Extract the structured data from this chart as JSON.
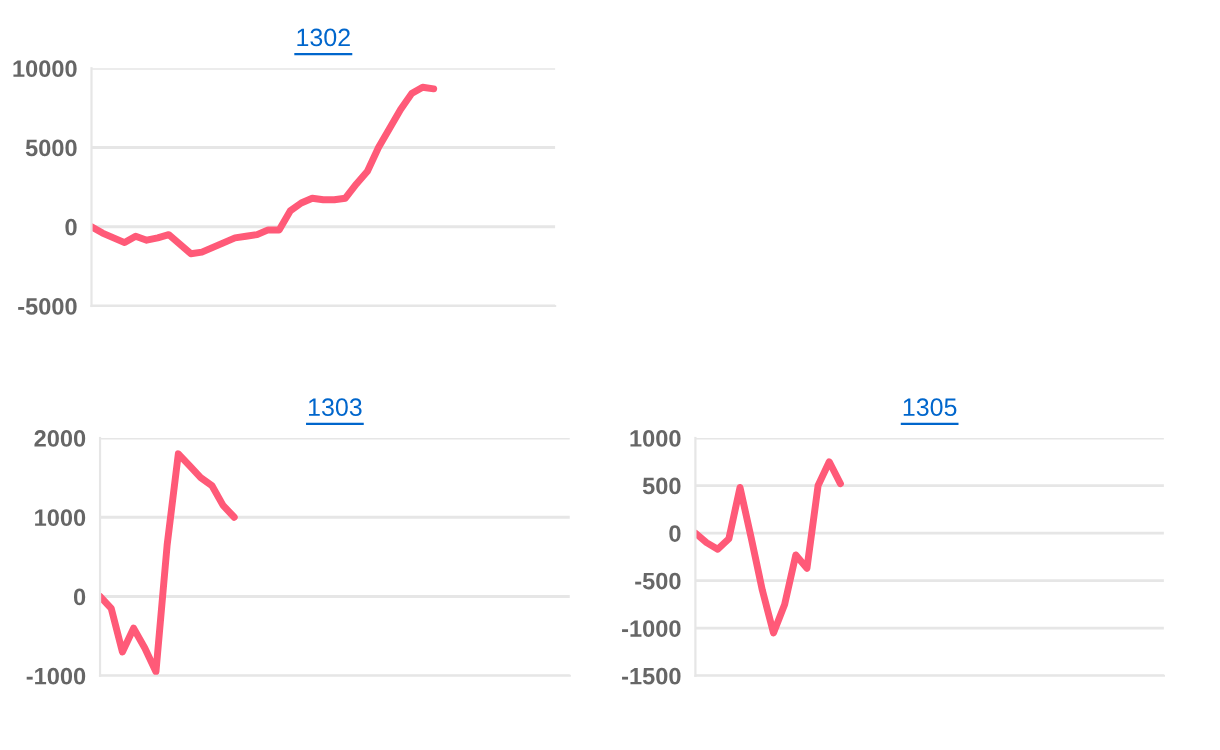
{
  "chart_data": [
    {
      "type": "line",
      "title": "1302",
      "categories": [
        null,
        null,
        null,
        null,
        null,
        null,
        null,
        null,
        null,
        null,
        null,
        null,
        null,
        null,
        null,
        null,
        null,
        null,
        null,
        null,
        null,
        null,
        null,
        null,
        null,
        null,
        null,
        null,
        null,
        null,
        null,
        null,
        null,
        null,
        null,
        null,
        null,
        null,
        null,
        null,
        null,
        null,
        null
      ],
      "series": [
        {
          "color": "#ff5a78",
          "values": [
            0,
            -400,
            -700,
            -1000,
            -600,
            -850,
            -700,
            -500,
            -1100,
            -1700,
            -1600,
            -1300,
            -1000,
            -700,
            -600,
            -500,
            -200,
            -200,
            1000,
            1500,
            1800,
            1700,
            1700,
            1800,
            2700,
            3500,
            5000,
            6200,
            7400,
            8400,
            8800,
            8700,
            null,
            null,
            null,
            null,
            null,
            null,
            null,
            null,
            null,
            null,
            null
          ]
        }
      ],
      "ylim": [
        -5000,
        10000
      ],
      "yticks": [
        -5000,
        0,
        5000,
        10000
      ],
      "grid": "y",
      "tick_labels": "y",
      "marker": "none",
      "line_style": "solid"
    },
    {
      "type": "line",
      "title": "1303",
      "categories": [
        null,
        null,
        null,
        null,
        null,
        null,
        null,
        null,
        null,
        null,
        null,
        null,
        null,
        null,
        null,
        null,
        null,
        null,
        null,
        null,
        null,
        null,
        null,
        null,
        null,
        null,
        null,
        null,
        null,
        null,
        null,
        null,
        null,
        null,
        null,
        null,
        null,
        null,
        null,
        null,
        null,
        null,
        null
      ],
      "series": [
        {
          "color": "#ff5a78",
          "values": [
            0,
            -150,
            -700,
            -400,
            -650,
            -950,
            650,
            1800,
            1650,
            1500,
            1400,
            1150,
            1000,
            null,
            null,
            null,
            null,
            null,
            null,
            null,
            null,
            null,
            null,
            null,
            null,
            null,
            null,
            null,
            null,
            null,
            null,
            null,
            null,
            null,
            null,
            null,
            null,
            null,
            null,
            null,
            null,
            null,
            null
          ]
        }
      ],
      "ylim": [
        -1000,
        2000
      ],
      "yticks": [
        -1000,
        0,
        1000,
        2000
      ],
      "grid": "y",
      "tick_labels": "y",
      "marker": "none",
      "line_style": "solid"
    },
    {
      "type": "line",
      "title": "1305",
      "categories": [
        null,
        null,
        null,
        null,
        null,
        null,
        null,
        null,
        null,
        null,
        null,
        null,
        null,
        null,
        null,
        null,
        null,
        null,
        null,
        null,
        null,
        null,
        null,
        null,
        null,
        null,
        null,
        null,
        null,
        null,
        null,
        null,
        null,
        null,
        null,
        null,
        null,
        null,
        null,
        null,
        null,
        null,
        null
      ],
      "series": [
        {
          "color": "#ff5a78",
          "values": [
            0,
            -100,
            -170,
            -60,
            480,
            -50,
            -600,
            -1050,
            -750,
            -230,
            -370,
            500,
            750,
            520,
            null,
            null,
            null,
            null,
            null,
            null,
            null,
            null,
            null,
            null,
            null,
            null,
            null,
            null,
            null,
            null,
            null,
            null,
            null,
            null,
            null,
            null,
            null,
            null,
            null,
            null,
            null,
            null,
            null
          ]
        }
      ],
      "ylim": [
        -1500,
        1000
      ],
      "yticks": [
        -1500,
        -1000,
        -500,
        0,
        500,
        1000
      ],
      "grid": "y",
      "tick_labels": "y",
      "marker": "none",
      "line_style": "solid"
    }
  ]
}
